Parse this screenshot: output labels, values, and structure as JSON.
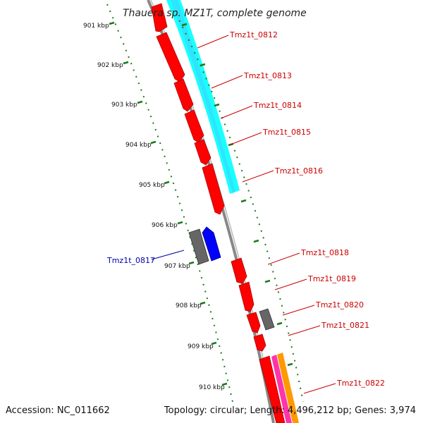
{
  "title": "Thauera sp. MZ1T, complete genome",
  "accession": "Accession: NC_011662",
  "topology": "Topology: circular; Length: 4,496,212 bp; Genes: 3,974",
  "kbp_labels": [
    "901 kbp",
    "902 kbp",
    "903 kbp",
    "904 kbp",
    "905 kbp",
    "906 kbp",
    "907 kbp",
    "908 kbp",
    "909 kbp",
    "910 kbp"
  ],
  "gene_labels": [
    {
      "id": "g0812",
      "text": "Tmz1t_0812"
    },
    {
      "id": "g0813",
      "text": "Tmz1t_0813"
    },
    {
      "id": "g0814",
      "text": "Tmz1t_0814"
    },
    {
      "id": "g0815",
      "text": "Tmz1t_0815"
    },
    {
      "id": "g0816",
      "text": "Tmz1t_0816"
    },
    {
      "id": "g0817",
      "text": "Tmz1t_0817"
    },
    {
      "id": "g0818",
      "text": "Tmz1t_0818"
    },
    {
      "id": "g0819",
      "text": "Tmz1t_0819"
    },
    {
      "id": "g0820",
      "text": "Tmz1t_0820"
    },
    {
      "id": "g0821",
      "text": "Tmz1t_0821"
    },
    {
      "id": "g0822",
      "text": "Tmz1t_0822"
    }
  ],
  "colors": {
    "backbone": "#888888",
    "cds": "#ff0000",
    "cds_dark": "#cc0000",
    "rna": "#00ffff",
    "pseudo": "#666666",
    "neg_strand": "#0000ff",
    "magenta": "#ff33aa",
    "orange": "#ff9900",
    "tick": "#1a7a1a",
    "label_pos": "#cc0000",
    "label_neg": "#0000aa"
  }
}
